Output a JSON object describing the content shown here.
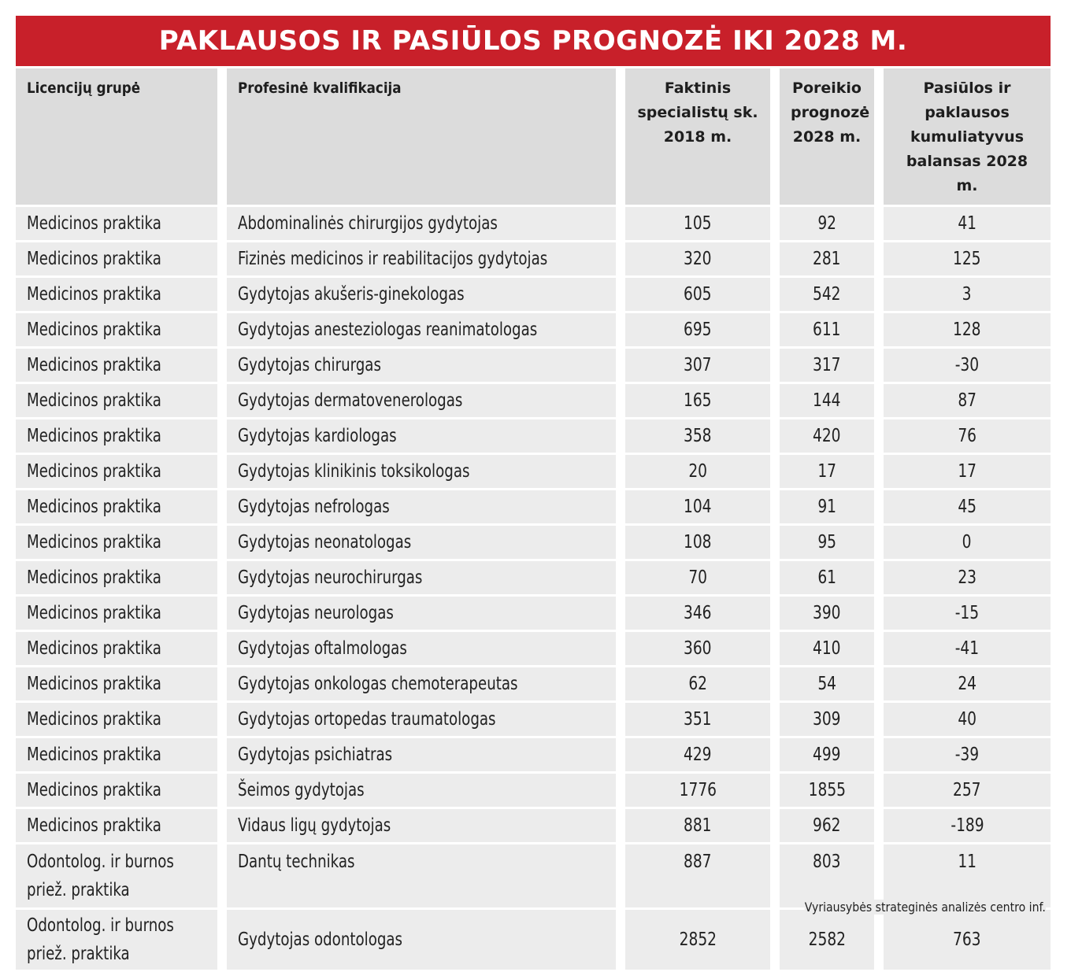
{
  "title": "PAKLAUSOS IR PASIŪLOS PROGNOZĖ IKI 2028 M.",
  "columns": [
    "Licencijų grupė",
    "Profesinė kvalifikacija",
    "Faktinis specialistų sk. 2018 m.",
    "Poreikio prognozė 2028 m.",
    "Pasiūlos ir paklausos kumuliatyvus balansas 2028 m."
  ],
  "rows": [
    {
      "group": "Medicinos praktika",
      "qualification": "Abdominalinės chirurgijos gydytojas",
      "actual_2018": "105",
      "forecast_2028": "92",
      "balance_2028": "41"
    },
    {
      "group": "Medicinos praktika",
      "qualification": "Fizinės medicinos ir reabilitacijos gydytojas",
      "actual_2018": "320",
      "forecast_2028": "281",
      "balance_2028": "125"
    },
    {
      "group": "Medicinos praktika",
      "qualification": "Gydytojas akušeris-ginekologas",
      "actual_2018": "605",
      "forecast_2028": "542",
      "balance_2028": "3"
    },
    {
      "group": "Medicinos praktika",
      "qualification": "Gydytojas anesteziologas reanimatologas",
      "actual_2018": "695",
      "forecast_2028": "611",
      "balance_2028": "128"
    },
    {
      "group": "Medicinos praktika",
      "qualification": "Gydytojas chirurgas",
      "actual_2018": "307",
      "forecast_2028": "317",
      "balance_2028": "-30"
    },
    {
      "group": "Medicinos praktika",
      "qualification": "Gydytojas dermatovenerologas",
      "actual_2018": "165",
      "forecast_2028": "144",
      "balance_2028": "87"
    },
    {
      "group": "Medicinos praktika",
      "qualification": "Gydytojas kardiologas",
      "actual_2018": "358",
      "forecast_2028": "420",
      "balance_2028": "76"
    },
    {
      "group": "Medicinos praktika",
      "qualification": "Gydytojas klinikinis toksikologas",
      "actual_2018": "20",
      "forecast_2028": "17",
      "balance_2028": "17"
    },
    {
      "group": "Medicinos praktika",
      "qualification": "Gydytojas nefrologas",
      "actual_2018": "104",
      "forecast_2028": "91",
      "balance_2028": "45"
    },
    {
      "group": "Medicinos praktika",
      "qualification": "Gydytojas neonatologas",
      "actual_2018": "108",
      "forecast_2028": "95",
      "balance_2028": "0"
    },
    {
      "group": "Medicinos praktika",
      "qualification": "Gydytojas neurochirurgas",
      "actual_2018": "70",
      "forecast_2028": "61",
      "balance_2028": "23"
    },
    {
      "group": "Medicinos praktika",
      "qualification": "Gydytojas neurologas",
      "actual_2018": "346",
      "forecast_2028": "390",
      "balance_2028": "-15"
    },
    {
      "group": "Medicinos praktika",
      "qualification": "Gydytojas oftalmologas",
      "actual_2018": "360",
      "forecast_2028": "410",
      "balance_2028": "-41"
    },
    {
      "group": "Medicinos praktika",
      "qualification": "Gydytojas onkologas chemoterapeutas",
      "actual_2018": "62",
      "forecast_2028": "54",
      "balance_2028": "24"
    },
    {
      "group": "Medicinos praktika",
      "qualification": "Gydytojas ortopedas traumatologas",
      "actual_2018": "351",
      "forecast_2028": "309",
      "balance_2028": "40"
    },
    {
      "group": "Medicinos praktika",
      "qualification": "Gydytojas psichiatras",
      "actual_2018": "429",
      "forecast_2028": "499",
      "balance_2028": "-39"
    },
    {
      "group": "Medicinos praktika",
      "qualification": "Šeimos gydytojas",
      "actual_2018": "1776",
      "forecast_2028": "1855",
      "balance_2028": "257"
    },
    {
      "group": "Medicinos praktika",
      "qualification": "Vidaus ligų gydytojas",
      "actual_2018": "881",
      "forecast_2028": "962",
      "balance_2028": "-189"
    },
    {
      "group_line1": "Odontolog. ir burnos",
      "group_line2": "priež. praktika",
      "qualification": "Dantų technikas",
      "actual_2018": "887",
      "forecast_2028": "803",
      "balance_2028": "11"
    },
    {
      "group_line1": "Odontolog. ir burnos",
      "group_line2": "priež. praktika",
      "qualification": "Gydytojas odontologas",
      "actual_2018": "2852",
      "forecast_2028": "2582",
      "balance_2028": "763"
    }
  ],
  "source": "Vyriausybės strateginės analizės centro inf.",
  "colors": {
    "title_bg": "#c8202a",
    "header_bg": "#dcdcdc",
    "cell_bg": "#ececec"
  }
}
